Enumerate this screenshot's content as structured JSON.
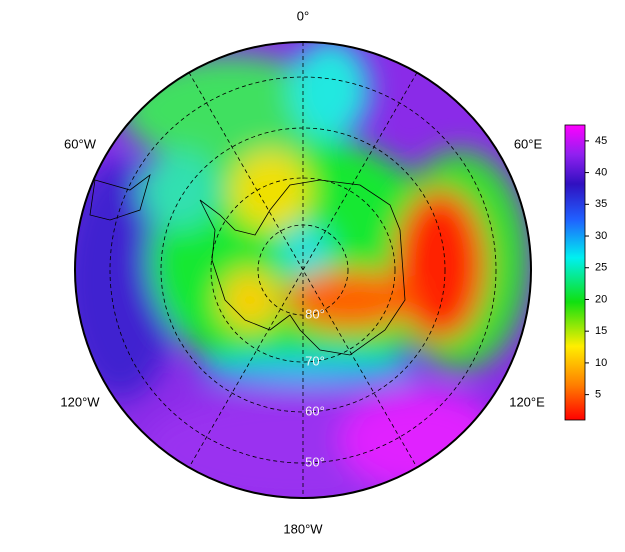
{
  "map": {
    "longitude_labels": [
      "0°",
      "60°E",
      "120°E",
      "180°W",
      "120°W",
      "60°W"
    ],
    "latitude_labels": [
      "80°",
      "70°",
      "60°",
      "50°"
    ],
    "colorbar": {
      "lim": [
        1,
        47.5
      ],
      "ticks": [
        5,
        10,
        15,
        20,
        25,
        30,
        35,
        40,
        45
      ]
    }
  }
}
